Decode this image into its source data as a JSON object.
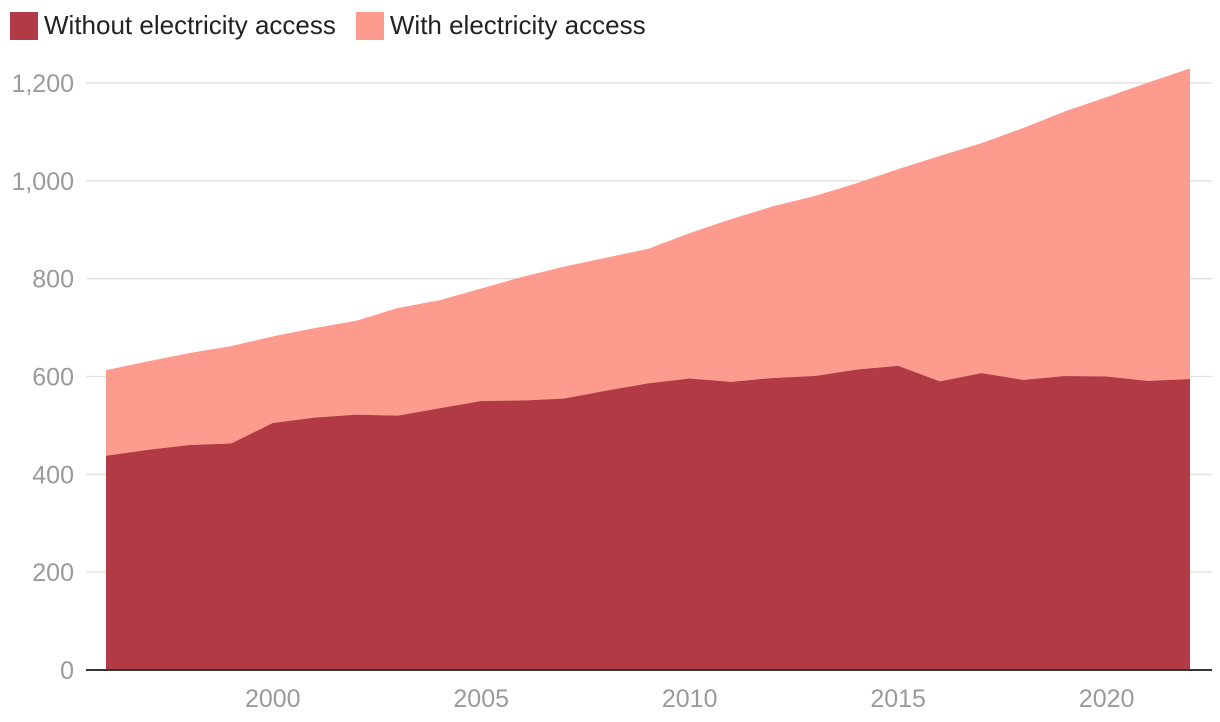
{
  "colors": {
    "without": "#b23a44",
    "with": "#fd9b8e",
    "grid": "#e2e2e2",
    "axis": "#333333",
    "ticks": "#9a9a9a"
  },
  "legend": [
    {
      "label": "Without electricity access"
    },
    {
      "label": "With electricity access"
    }
  ],
  "chart_data": {
    "type": "area",
    "stacked": true,
    "title": "",
    "xlabel": "",
    "ylabel": "",
    "xlim": [
      1996,
      2022
    ],
    "ylim": [
      0,
      1200
    ],
    "grid": true,
    "legend_position": "top-left",
    "x": [
      1996,
      1997,
      1998,
      1999,
      2000,
      2001,
      2002,
      2003,
      2004,
      2005,
      2006,
      2007,
      2008,
      2009,
      2010,
      2011,
      2012,
      2013,
      2014,
      2015,
      2016,
      2017,
      2018,
      2019,
      2020,
      2021,
      2022
    ],
    "series": [
      {
        "name": "Without electricity access",
        "values": [
          438,
          450,
          460,
          463,
          505,
          516,
          522,
          520,
          535,
          550,
          551,
          555,
          571,
          586,
          596,
          589,
          597,
          601,
          614,
          622,
          590,
          607,
          593,
          601,
          600,
          591,
          595
        ]
      },
      {
        "name": "With electricity access",
        "values": [
          175,
          181,
          188,
          199,
          177,
          183,
          192,
          220,
          221,
          230,
          253,
          270,
          272,
          275,
          297,
          333,
          351,
          368,
          381,
          402,
          461,
          470,
          515,
          541,
          571,
          610,
          635
        ]
      }
    ],
    "x_ticks": [
      "2000",
      "2005",
      "2010",
      "2015",
      "2020"
    ],
    "y_ticks": [
      "0",
      "200",
      "400",
      "600",
      "800",
      "1,000",
      "1,200"
    ]
  }
}
